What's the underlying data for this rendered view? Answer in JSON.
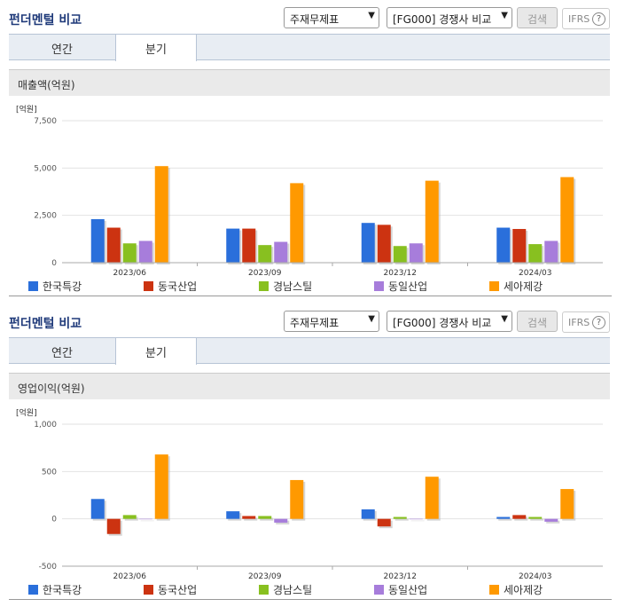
{
  "panels": [
    {
      "title": "펀더멘털 비교",
      "select1": "주재무제표",
      "select2": "[FG000] 경쟁사 비교",
      "search_label": "검색",
      "ifrs_label": "IFRS",
      "tabs": [
        "연간",
        "분기"
      ],
      "section_label": "매출액(억원)"
    },
    {
      "title": "펀더멘털 비교",
      "select1": "주재무제표",
      "select2": "[FG000] 경쟁사 비교",
      "search_label": "검색",
      "ifrs_label": "IFRS",
      "tabs": [
        "연간",
        "분기"
      ],
      "section_label": "영업이익(억원)"
    }
  ],
  "colors": {
    "한국특강": "#2a6fdb",
    "동국산업": "#cc3311",
    "경남스틸": "#88c020",
    "동일산업": "#a77ddb",
    "세아제강": "#ff9900"
  },
  "chart_data": [
    {
      "type": "bar",
      "unit_label": "[억원]",
      "categories": [
        "2023/06",
        "2023/09",
        "2023/12",
        "2024/03"
      ],
      "ylim": [
        0,
        7500
      ],
      "yticks": [
        0,
        2500,
        5000,
        7500
      ],
      "ytick_labels": [
        "0",
        "2,500",
        "5,000",
        "7,500"
      ],
      "series": [
        {
          "name": "한국특강",
          "values": [
            2300,
            1800,
            2100,
            1850
          ]
        },
        {
          "name": "동국산업",
          "values": [
            1850,
            1800,
            2000,
            1780
          ]
        },
        {
          "name": "경남스틸",
          "values": [
            1020,
            930,
            880,
            980
          ]
        },
        {
          "name": "동일산업",
          "values": [
            1150,
            1100,
            1020,
            1150
          ]
        },
        {
          "name": "세아제강",
          "values": [
            5100,
            4200,
            4330,
            4520
          ]
        }
      ],
      "legend": "bottom"
    },
    {
      "type": "bar",
      "unit_label": "[억원]",
      "categories": [
        "2023/06",
        "2023/09",
        "2023/12",
        "2024/03"
      ],
      "ylim": [
        -500,
        1000
      ],
      "yticks": [
        -500,
        0,
        500,
        1000
      ],
      "ytick_labels": [
        "-500",
        "0",
        "500",
        "1,000"
      ],
      "series": [
        {
          "name": "한국특강",
          "values": [
            210,
            80,
            100,
            20
          ]
        },
        {
          "name": "동국산업",
          "values": [
            -160,
            30,
            -80,
            40
          ]
        },
        {
          "name": "경남스틸",
          "values": [
            40,
            30,
            20,
            20
          ]
        },
        {
          "name": "동일산업",
          "values": [
            0,
            -40,
            0,
            -30
          ]
        },
        {
          "name": "세아제강",
          "values": [
            680,
            410,
            445,
            315
          ]
        }
      ],
      "legend": "bottom"
    }
  ]
}
